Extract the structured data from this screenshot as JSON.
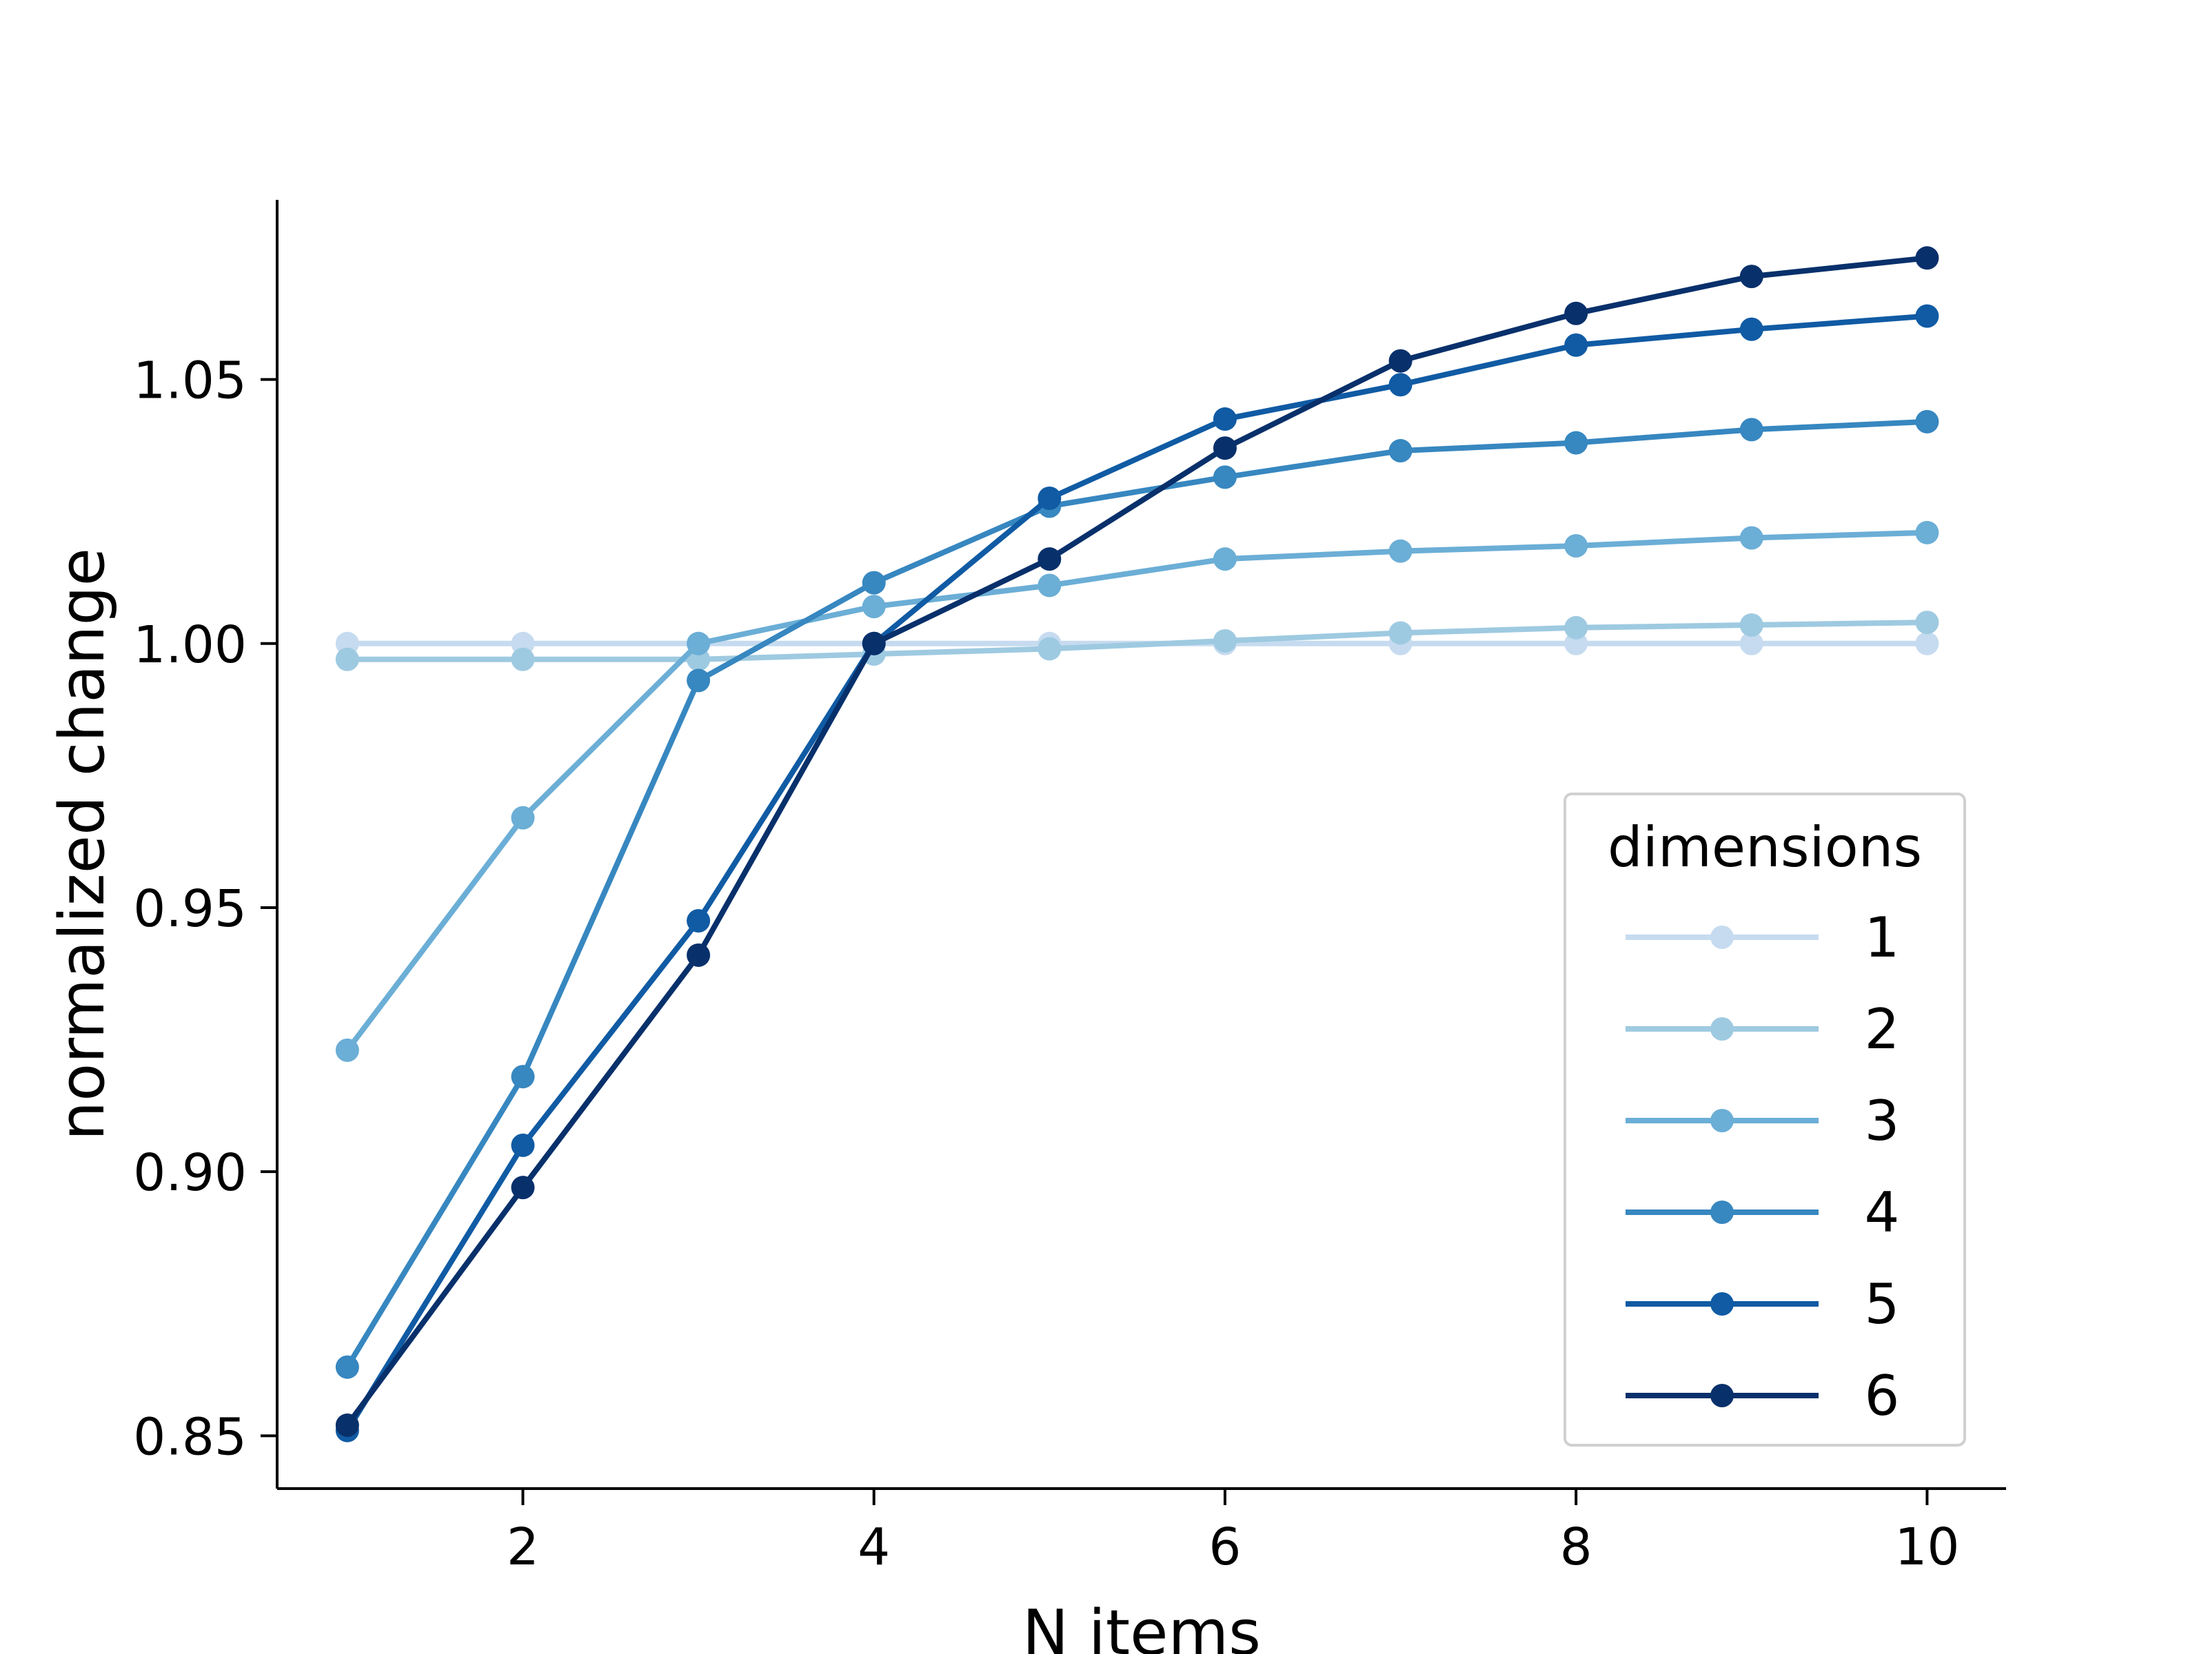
{
  "chart_data": {
    "type": "line",
    "title": "",
    "xlabel": "N items",
    "ylabel": "normalized change",
    "xlim": [
      0.6,
      10.45
    ],
    "ylim": [
      0.84,
      1.084
    ],
    "xticks": [
      2,
      4,
      6,
      8,
      10
    ],
    "yticks": [
      0.85,
      0.9,
      0.95,
      1.0,
      1.05
    ],
    "xtick_labels": [
      "2",
      "4",
      "6",
      "8",
      "10"
    ],
    "ytick_labels": [
      "0.85",
      "0.90",
      "0.95",
      "1.00",
      "1.05"
    ],
    "grid": false,
    "legend": {
      "title": "dimensions",
      "placement": "lower-right"
    },
    "x": [
      1,
      2,
      3,
      4,
      5,
      6,
      7,
      8,
      9,
      10
    ],
    "series": [
      {
        "name": "1",
        "color": "#c6dbef",
        "values": [
          1.0,
          1.0,
          1.0,
          1.0,
          1.0,
          1.0,
          1.0,
          1.0,
          1.0,
          1.0
        ]
      },
      {
        "name": "2",
        "color": "#9ecae1",
        "values": [
          0.997,
          0.997,
          0.997,
          0.998,
          0.999,
          1.0005,
          1.002,
          1.003,
          1.0035,
          1.004
        ]
      },
      {
        "name": "3",
        "color": "#6baed6",
        "values": [
          0.923,
          0.967,
          1.0,
          1.007,
          1.011,
          1.016,
          1.0175,
          1.0185,
          1.02,
          1.021
        ]
      },
      {
        "name": "4",
        "color": "#3787c0",
        "values": [
          0.863,
          0.918,
          0.993,
          1.0115,
          1.026,
          1.0315,
          1.0365,
          1.038,
          1.0405,
          1.042
        ]
      },
      {
        "name": "5",
        "color": "#105ba4",
        "values": [
          0.851,
          0.905,
          0.9475,
          1.0,
          1.0275,
          1.0425,
          1.049,
          1.0565,
          1.0595,
          1.062
        ]
      },
      {
        "name": "6",
        "color": "#08306b",
        "values": [
          0.852,
          0.897,
          0.941,
          1.0,
          1.016,
          1.037,
          1.0535,
          1.0625,
          1.0695,
          1.073
        ]
      }
    ]
  }
}
